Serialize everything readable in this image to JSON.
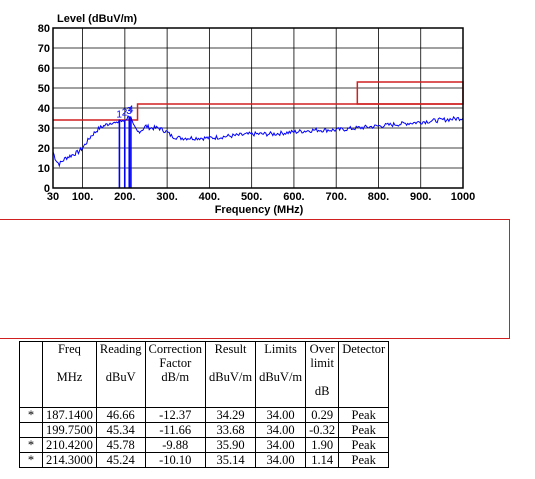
{
  "chart_data": {
    "type": "line",
    "ylabel": "Level (dBuV/m)",
    "xlabel": "Frequency (MHz)",
    "xlim": [
      30,
      1000
    ],
    "ylim": [
      0,
      80
    ],
    "x_ticks": [
      30,
      100,
      200,
      300,
      400,
      500,
      600,
      700,
      800,
      900,
      1000
    ],
    "x_tick_labels": [
      "30",
      "100.",
      "200.",
      "300.",
      "400.",
      "500.",
      "600.",
      "700.",
      "800.",
      "900.",
      "1000"
    ],
    "y_ticks": [
      0,
      10,
      20,
      30,
      40,
      50,
      60,
      70,
      80
    ],
    "y_tick_labels": [
      "0",
      "10",
      "20",
      "30",
      "40",
      "50",
      "60",
      "70",
      "80"
    ],
    "grid": true,
    "limit_line": [
      [
        30,
        34
      ],
      [
        230,
        34
      ],
      [
        230,
        42
      ],
      [
        1000,
        42
      ]
    ],
    "limit_box": {
      "x": [
        750,
        1000
      ],
      "y": [
        42,
        53
      ]
    },
    "trace": [
      [
        30,
        18
      ],
      [
        35,
        15
      ],
      [
        40,
        13
      ],
      [
        45,
        12
      ],
      [
        50,
        13
      ],
      [
        60,
        15
      ],
      [
        70,
        16
      ],
      [
        80,
        17
      ],
      [
        90,
        18
      ],
      [
        100,
        20
      ],
      [
        110,
        23
      ],
      [
        120,
        26
      ],
      [
        130,
        28
      ],
      [
        140,
        30
      ],
      [
        150,
        31
      ],
      [
        160,
        32
      ],
      [
        170,
        33
      ],
      [
        180,
        32
      ],
      [
        187,
        34
      ],
      [
        195,
        33
      ],
      [
        200,
        34
      ],
      [
        205,
        35
      ],
      [
        210,
        36
      ],
      [
        214,
        35
      ],
      [
        220,
        31
      ],
      [
        230,
        28
      ],
      [
        240,
        29
      ],
      [
        250,
        31
      ],
      [
        260,
        30
      ],
      [
        270,
        30
      ],
      [
        280,
        30
      ],
      [
        290,
        29
      ],
      [
        300,
        28
      ],
      [
        310,
        26
      ],
      [
        330,
        25
      ],
      [
        360,
        25
      ],
      [
        400,
        25
      ],
      [
        450,
        26
      ],
      [
        500,
        27
      ],
      [
        550,
        27
      ],
      [
        600,
        28
      ],
      [
        650,
        29
      ],
      [
        700,
        29
      ],
      [
        750,
        30
      ],
      [
        800,
        31
      ],
      [
        850,
        32
      ],
      [
        900,
        33
      ],
      [
        950,
        34
      ],
      [
        1000,
        35
      ]
    ],
    "markers": [
      {
        "label": "1",
        "freq": 187.14,
        "level": 34.29
      },
      {
        "label": "2",
        "freq": 199.75,
        "level": 33.68
      },
      {
        "label": "3",
        "freq": 210.42,
        "level": 35.9
      },
      {
        "label": "4",
        "freq": 214.3,
        "level": 35.14
      }
    ]
  },
  "table": {
    "headers": [
      {
        "lines": [
          "Freq",
          "",
          "MHz"
        ]
      },
      {
        "lines": [
          "Reading",
          "",
          "dBuV"
        ]
      },
      {
        "lines": [
          "Correction",
          "Factor",
          "dB/m"
        ]
      },
      {
        "lines": [
          "Result",
          "",
          "dBuV/m"
        ]
      },
      {
        "lines": [
          "Limits",
          "",
          "dBuV/m"
        ]
      },
      {
        "lines": [
          "Over",
          "limit",
          "",
          "dB"
        ]
      },
      {
        "lines": [
          "Detector"
        ]
      }
    ],
    "rows": [
      {
        "mark": "*",
        "freq": "187.1400",
        "reading": "46.66",
        "correction": "-12.37",
        "result": "34.29",
        "limit": "34.00",
        "over": "0.29",
        "detector": "Peak"
      },
      {
        "mark": "",
        "freq": "199.7500",
        "reading": "45.34",
        "correction": "-11.66",
        "result": "33.68",
        "limit": "34.00",
        "over": "-0.32",
        "detector": "Peak"
      },
      {
        "mark": "*",
        "freq": "210.4200",
        "reading": "45.78",
        "correction": "-9.88",
        "result": "35.90",
        "limit": "34.00",
        "over": "1.90",
        "detector": "Peak"
      },
      {
        "mark": "*",
        "freq": "214.3000",
        "reading": "45.24",
        "correction": "-10.10",
        "result": "35.14",
        "limit": "34.00",
        "over": "1.14",
        "detector": "Peak"
      }
    ],
    "colors": {
      "trace": "#0000ff",
      "limit": "#d02020",
      "grid": "#000000"
    }
  }
}
